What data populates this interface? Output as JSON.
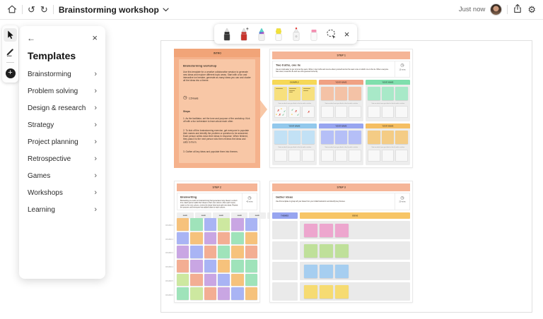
{
  "topbar": {
    "title": "Brainstorming workshop",
    "status": "Just now"
  },
  "tool_rail": {
    "tools": [
      "select-tool",
      "pen-tool",
      "add-content"
    ]
  },
  "pen_toolbar": {
    "tools": [
      {
        "id": "black-pen",
        "color": "#1a1a1a"
      },
      {
        "id": "red-arrow-pen",
        "color": "#C8332B"
      },
      {
        "id": "galaxy-pen",
        "color": "#8A55D6"
      },
      {
        "id": "yellow-highlighter",
        "color": "#F2E23B"
      },
      {
        "id": "laser-pointer",
        "color": "#E53935"
      },
      {
        "id": "eraser",
        "color": "#F48FB1"
      },
      {
        "id": "lasso-select"
      },
      {
        "id": "close"
      }
    ]
  },
  "templates_panel": {
    "title": "Templates",
    "items": [
      {
        "label": "Brainstorming"
      },
      {
        "label": "Problem solving"
      },
      {
        "label": "Design & research"
      },
      {
        "label": "Strategy"
      },
      {
        "label": "Project planning"
      },
      {
        "label": "Retrospective"
      },
      {
        "label": "Games"
      },
      {
        "label": "Workshops"
      },
      {
        "label": "Learning"
      }
    ]
  },
  "palette": {
    "orange": "#F6C27C",
    "mint": "#9FE3BA",
    "lime": "#CDE8A0",
    "peri": "#A9B4F4",
    "purple": "#C9A6E3",
    "salmon": "#F3AE93",
    "pink": "#EDA6CE",
    "green": "#BFE09A",
    "blue": "#A6CEF0",
    "yellow": "#F6DB72",
    "header_salmon": "#F5B597",
    "intro_bg": "#F5B28C",
    "intro_header": "#F1A478",
    "intro_card": "#F8C7A6"
  },
  "board": {
    "intro": {
      "header": "INTRO",
      "title": "Brainstorming workshop",
      "description": "Use this template for a creative collaborative session to generate new ideas and explore different topic areas. Start with a fun and interactive ice breaker, generate as many ideas you can and cluster all the ideas into a theme.",
      "duration": "1.5 hours",
      "steps_title": "Steps",
      "steps": [
        "As the facilitator, set the tone and purpose of the workshop. Kick off with a fun icebreaker to learn about each other.",
        "To kick off the brainstorming exercise, get everyone to populate their names and identify the problem or question to be answered. Each person writes down their ideas in response. When finished, they pass it to the next person who then reviews the ideas and adds to them.",
        "Gather all key ideas and populate them into themes."
      ]
    },
    "step1": {
      "header": "STEP 1",
      "title": "Two truths, one lie",
      "description": "Use an icebreaker to get to know the team. Write in two truths and one lie about yourself and let the team vote on which one is the lie. When everyone has voted, reveal the lie and see who guessed correctly.",
      "duration": "15 mins",
      "vote_caption": "Vote on which one you think is the lie with a sticker",
      "members": [
        {
          "name": "EXAMPLE",
          "header": "#F6D857",
          "note": "#F7E07E",
          "example": true
        },
        {
          "name": "YOUR NAME",
          "header": "#F0A183",
          "note": "#F4C2A6"
        },
        {
          "name": "YOUR NAME",
          "header": "#7FDFAD",
          "note": "#A8E9C8"
        },
        {
          "name": "YOUR NAME",
          "header": "#92C8EC",
          "note": "#C2E1F5"
        },
        {
          "name": "YOUR NAME",
          "header": "#97A5F0",
          "note": "#B5BFF7"
        },
        {
          "name": "YOUR NAME",
          "header": "#F5BE62",
          "note": "#F4CC85"
        }
      ],
      "example_note_lines": [
        1,
        3,
        2
      ],
      "example_stickers": [
        [
          {
            "t": "x",
            "x": 3,
            "y": 4
          },
          {
            "t": "dot",
            "x": 8,
            "y": 2
          },
          {
            "t": "check",
            "x": 12,
            "y": 5
          },
          {
            "t": "x",
            "x": 5,
            "y": 10
          },
          {
            "t": "check",
            "x": 10,
            "y": 10
          },
          {
            "t": "dot",
            "x": 1,
            "y": 10
          }
        ],
        [
          {
            "t": "check",
            "x": 3,
            "y": 3
          },
          {
            "t": "x",
            "x": 8,
            "y": 5
          },
          {
            "t": "dot",
            "x": 3,
            "y": 10
          },
          {
            "t": "check",
            "x": 11,
            "y": 10
          }
        ],
        [
          {
            "t": "x",
            "x": 7,
            "y": 6
          }
        ]
      ]
    },
    "step2": {
      "header": "STEP 2",
      "title": "Brainwriting",
      "description": "Brainwriting is a twist on brainstorming that generates many ideas in a short time. Each person adds their ideas to their own column. After each round, rotate to the next column, review the ideas listed and add new ideas. Repeat the process until everyone has added ideas to each column.",
      "duration": "45 mins",
      "column_header": "NAME",
      "columns": 6,
      "rounds": [
        "ROUND 1",
        "ROUND 2",
        "ROUND 3",
        "ROUND 4",
        "ROUND 5",
        "ROUND 6"
      ],
      "grid": [
        [
          "orange",
          "mint",
          "peri",
          "lime",
          "purple",
          "peri"
        ],
        [
          "peri",
          "orange",
          "purple",
          "salmon",
          "mint",
          "orange"
        ],
        [
          "purple",
          "peri",
          "salmon",
          "mint",
          "orange",
          "salmon"
        ],
        [
          "salmon",
          "purple",
          "peri",
          "orange",
          "mint",
          "mint"
        ],
        [
          "lime",
          "salmon",
          "purple",
          "peri",
          "orange",
          "mint"
        ],
        [
          "mint",
          "lime",
          "salmon",
          "purple",
          "peri",
          "orange"
        ]
      ]
    },
    "step3": {
      "header": "STEP 3",
      "title": "Gather ideas",
      "description": "Use this template to group all your ideas from your initial brainstorm and identify key themes.",
      "duration": "20 mins",
      "themes_header": "THEMES",
      "ideas_header": "IDEAS",
      "theme_rows": 4,
      "idea_rows": [
        "pink",
        "green",
        "blue",
        "yellow"
      ]
    }
  }
}
